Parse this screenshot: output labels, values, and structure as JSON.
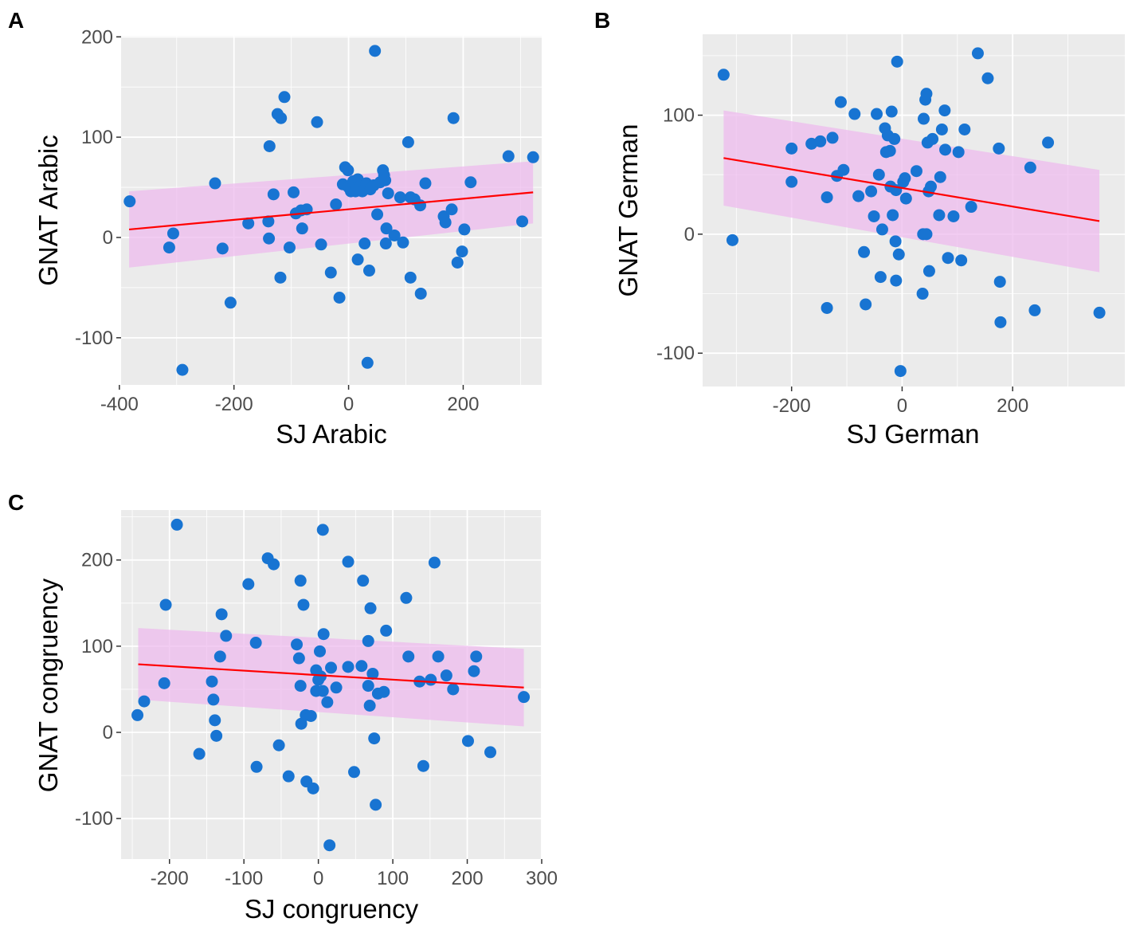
{
  "colors": {
    "panel_bg": "#ebebeb",
    "grid_major": "#ffffff",
    "point": "#1874d2",
    "fit_line": "#ff0000",
    "ribbon": "#eebbee"
  },
  "chart_data": [
    {
      "type": "scatter",
      "panel_label": "A",
      "title": "",
      "xlabel": "SJ Arabic",
      "ylabel": "GNAT Arabic",
      "xlim": [
        -397,
        337
      ],
      "ylim": [
        -147,
        201
      ],
      "x_ticks": [
        -400,
        -200,
        0,
        200
      ],
      "x_tick_labels": [
        "-400",
        "-200",
        "0",
        "200"
      ],
      "y_ticks": [
        -100,
        0,
        100,
        200
      ],
      "y_tick_labels": [
        "-100",
        "0",
        "100",
        "200"
      ],
      "fit": {
        "x": [
          -383,
          322
        ],
        "y": [
          8,
          45
        ],
        "lower": [
          -30,
          14
        ],
        "upper": [
          46,
          76
        ]
      },
      "points": [
        [
          -382,
          36
        ],
        [
          -313,
          -10
        ],
        [
          -306,
          4
        ],
        [
          -290,
          -132
        ],
        [
          -233,
          54
        ],
        [
          -220,
          -11
        ],
        [
          -206,
          -65
        ],
        [
          -175,
          14
        ],
        [
          -140,
          16
        ],
        [
          -139,
          -1
        ],
        [
          -138,
          91
        ],
        [
          -131,
          43
        ],
        [
          -124,
          123
        ],
        [
          -118,
          119
        ],
        [
          -119,
          -40
        ],
        [
          -112,
          140
        ],
        [
          -103,
          -10
        ],
        [
          -96,
          45
        ],
        [
          -92,
          24
        ],
        [
          -83,
          27
        ],
        [
          -81,
          9
        ],
        [
          -73,
          28
        ],
        [
          -55,
          115
        ],
        [
          -48,
          -7
        ],
        [
          -31,
          -35
        ],
        [
          -22,
          33
        ],
        [
          -16,
          -60
        ],
        [
          -10,
          53
        ],
        [
          -6,
          70
        ],
        [
          -1,
          67
        ],
        [
          0,
          50
        ],
        [
          4,
          46
        ],
        [
          8,
          56
        ],
        [
          12,
          46
        ],
        [
          16,
          58
        ],
        [
          16,
          -22
        ],
        [
          20,
          51
        ],
        [
          24,
          46
        ],
        [
          28,
          -6
        ],
        [
          31,
          54
        ],
        [
          33,
          -125
        ],
        [
          36,
          -33
        ],
        [
          38,
          48
        ],
        [
          44,
          52
        ],
        [
          46,
          186
        ],
        [
          50,
          23
        ],
        [
          55,
          55
        ],
        [
          60,
          67
        ],
        [
          62,
          62
        ],
        [
          64,
          57
        ],
        [
          65,
          -6
        ],
        [
          66,
          9
        ],
        [
          69,
          44
        ],
        [
          80,
          2
        ],
        [
          90,
          40
        ],
        [
          95,
          -5
        ],
        [
          104,
          95
        ],
        [
          108,
          40
        ],
        [
          108,
          -40
        ],
        [
          115,
          38
        ],
        [
          125,
          32
        ],
        [
          126,
          -56
        ],
        [
          134,
          54
        ],
        [
          166,
          21
        ],
        [
          169,
          15
        ],
        [
          180,
          28
        ],
        [
          183,
          119
        ],
        [
          190,
          -25
        ],
        [
          198,
          -14
        ],
        [
          202,
          8
        ],
        [
          213,
          55
        ],
        [
          279,
          81
        ],
        [
          303,
          16
        ],
        [
          322,
          80
        ]
      ]
    },
    {
      "type": "scatter",
      "panel_label": "B",
      "title": "",
      "xlabel": "SJ German",
      "ylabel": "GNAT German",
      "xlim": [
        -361,
        403
      ],
      "ylim": [
        -128,
        168
      ],
      "x_ticks": [
        -200,
        0,
        200
      ],
      "x_tick_labels": [
        "-200",
        "0",
        "200"
      ],
      "y_ticks": [
        -100,
        0,
        100
      ],
      "y_tick_labels": [
        "-100",
        "0",
        "100"
      ],
      "fit": {
        "x": [
          -323,
          357
        ],
        "y": [
          64,
          11
        ],
        "lower": [
          24,
          -32
        ],
        "upper": [
          104,
          54
        ]
      },
      "points": [
        [
          -323,
          134
        ],
        [
          -307,
          -5
        ],
        [
          -200,
          44
        ],
        [
          -200,
          72
        ],
        [
          -164,
          76
        ],
        [
          -148,
          78
        ],
        [
          -136,
          31
        ],
        [
          -136,
          -62
        ],
        [
          -126,
          81
        ],
        [
          -118,
          49
        ],
        [
          -111,
          111
        ],
        [
          -106,
          54
        ],
        [
          -86,
          101
        ],
        [
          -79,
          32
        ],
        [
          -69,
          -15
        ],
        [
          -66,
          -59
        ],
        [
          -56,
          36
        ],
        [
          -51,
          15
        ],
        [
          -46,
          101
        ],
        [
          -42,
          50
        ],
        [
          -39,
          -36
        ],
        [
          -36,
          4
        ],
        [
          -31,
          89
        ],
        [
          -29,
          69
        ],
        [
          -26,
          83
        ],
        [
          -22,
          70
        ],
        [
          -21,
          40
        ],
        [
          -19,
          103
        ],
        [
          -17,
          16
        ],
        [
          -14,
          80
        ],
        [
          -12,
          -6
        ],
        [
          -11,
          -39
        ],
        [
          -11,
          37
        ],
        [
          -9,
          145
        ],
        [
          -6,
          -17
        ],
        [
          -3,
          -115
        ],
        [
          2,
          44
        ],
        [
          5,
          47
        ],
        [
          7,
          30
        ],
        [
          26,
          53
        ],
        [
          37,
          -50
        ],
        [
          38,
          0
        ],
        [
          39,
          97
        ],
        [
          42,
          113
        ],
        [
          44,
          118
        ],
        [
          44,
          0
        ],
        [
          46,
          77
        ],
        [
          48,
          36
        ],
        [
          49,
          -31
        ],
        [
          52,
          40
        ],
        [
          55,
          80
        ],
        [
          67,
          16
        ],
        [
          69,
          48
        ],
        [
          72,
          88
        ],
        [
          77,
          104
        ],
        [
          78,
          71
        ],
        [
          83,
          -20
        ],
        [
          93,
          15
        ],
        [
          102,
          69
        ],
        [
          107,
          -22
        ],
        [
          113,
          88
        ],
        [
          125,
          23
        ],
        [
          137,
          152
        ],
        [
          155,
          131
        ],
        [
          175,
          72
        ],
        [
          177,
          -40
        ],
        [
          178,
          -74
        ],
        [
          232,
          56
        ],
        [
          240,
          -64
        ],
        [
          264,
          77
        ],
        [
          357,
          -66
        ]
      ]
    },
    {
      "type": "scatter",
      "panel_label": "C",
      "title": "",
      "xlabel": "SJ congruency",
      "ylabel": "GNAT congruency",
      "xlim": [
        -265,
        300
      ],
      "ylim": [
        -147,
        258
      ],
      "x_ticks": [
        -200,
        -100,
        0,
        100,
        200,
        300
      ],
      "x_tick_labels": [
        "-200",
        "-100",
        "0",
        "100",
        "200",
        "300"
      ],
      "y_ticks": [
        -100,
        0,
        100,
        200
      ],
      "y_tick_labels": [
        "-100",
        "0",
        "100",
        "200"
      ],
      "fit": {
        "x": [
          -242,
          276
        ],
        "y": [
          79,
          52
        ],
        "lower": [
          38,
          7
        ],
        "upper": [
          121,
          97
        ]
      },
      "points": [
        [
          -243,
          20
        ],
        [
          -234,
          36
        ],
        [
          -207,
          57
        ],
        [
          -205,
          148
        ],
        [
          -190,
          241
        ],
        [
          -160,
          -25
        ],
        [
          -143,
          59
        ],
        [
          -141,
          38
        ],
        [
          -139,
          14
        ],
        [
          -137,
          -4
        ],
        [
          -132,
          88
        ],
        [
          -130,
          137
        ],
        [
          -124,
          112
        ],
        [
          -94,
          172
        ],
        [
          -84,
          104
        ],
        [
          -83,
          -40
        ],
        [
          -68,
          202
        ],
        [
          -60,
          195
        ],
        [
          -53,
          -15
        ],
        [
          -40,
          -51
        ],
        [
          -29,
          102
        ],
        [
          -26,
          86
        ],
        [
          -24,
          54
        ],
        [
          -24,
          176
        ],
        [
          -23,
          10
        ],
        [
          -20,
          148
        ],
        [
          -17,
          20
        ],
        [
          -16,
          -57
        ],
        [
          -10,
          19
        ],
        [
          -7,
          -65
        ],
        [
          -3,
          48
        ],
        [
          -3,
          72
        ],
        [
          0,
          61
        ],
        [
          2,
          94
        ],
        [
          3,
          65
        ],
        [
          6,
          235
        ],
        [
          6,
          48
        ],
        [
          7,
          114
        ],
        [
          12,
          35
        ],
        [
          15,
          -131
        ],
        [
          17,
          75
        ],
        [
          24,
          52
        ],
        [
          40,
          198
        ],
        [
          40,
          76
        ],
        [
          48,
          -46
        ],
        [
          58,
          77
        ],
        [
          60,
          176
        ],
        [
          67,
          106
        ],
        [
          67,
          54
        ],
        [
          69,
          31
        ],
        [
          70,
          144
        ],
        [
          73,
          68
        ],
        [
          75,
          -7
        ],
        [
          77,
          -84
        ],
        [
          80,
          45
        ],
        [
          88,
          47
        ],
        [
          91,
          118
        ],
        [
          118,
          156
        ],
        [
          121,
          88
        ],
        [
          136,
          59
        ],
        [
          141,
          -39
        ],
        [
          151,
          61
        ],
        [
          156,
          197
        ],
        [
          161,
          88
        ],
        [
          172,
          66
        ],
        [
          181,
          50
        ],
        [
          201,
          -10
        ],
        [
          209,
          71
        ],
        [
          212,
          88
        ],
        [
          231,
          -23
        ],
        [
          276,
          41
        ]
      ]
    }
  ]
}
